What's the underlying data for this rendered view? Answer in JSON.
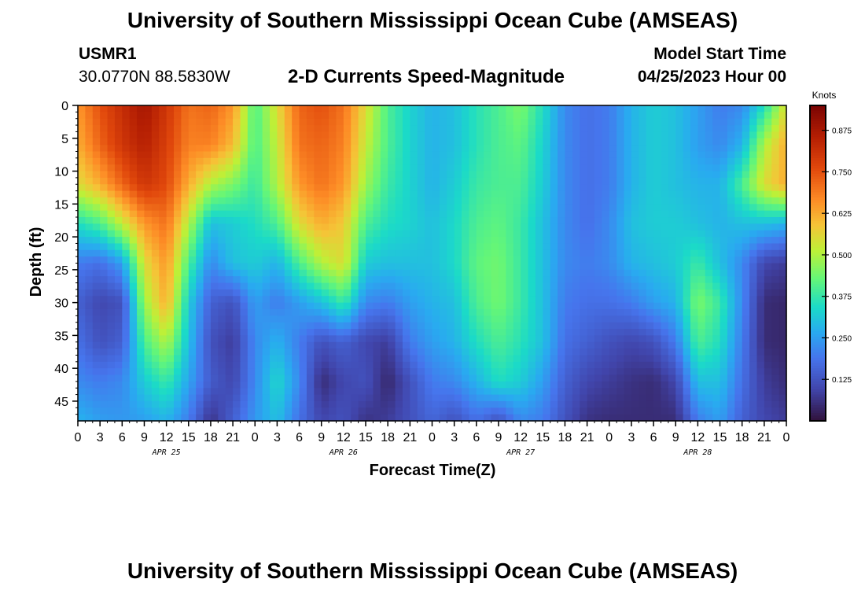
{
  "page": {
    "title": "University of Southern Mississippi Ocean Cube (AMSEAS)",
    "title_repeat": "University of Southern Mississippi Ocean Cube (AMSEAS)",
    "station_id": "USMR1",
    "station_coords": "30.0770N  88.5830W",
    "subtitle": "2-D Currents Speed-Magnitude",
    "model_start_label": "Model Start Time",
    "model_start_value": "04/25/2023 Hour 00"
  },
  "chart_data": {
    "type": "heatmap",
    "title": "2-D Currents Speed-Magnitude",
    "xlabel": "Forecast Time(Z)",
    "ylabel": "Depth (ft)",
    "colorbar_label": "Knots",
    "colorbar_ticks": [
      "0.125",
      "0.250",
      "0.375",
      "0.500",
      "0.625",
      "0.750",
      "0.875"
    ],
    "colorbar_range": [
      0,
      0.95
    ],
    "x_tick_labels": [
      "0",
      "3",
      "6",
      "9",
      "12",
      "15",
      "18",
      "21",
      "0",
      "3",
      "6",
      "9",
      "12",
      "15",
      "18",
      "21",
      "0",
      "3",
      "6",
      "9",
      "12",
      "15",
      "18",
      "21",
      "0",
      "3",
      "6",
      "9",
      "12",
      "15",
      "18",
      "21",
      "0"
    ],
    "day_labels": [
      "APR 25",
      "APR 26",
      "APR 27",
      "APR 28"
    ],
    "y_tick_labels": [
      "0",
      "5",
      "10",
      "15",
      "20",
      "25",
      "30",
      "35",
      "40",
      "45"
    ],
    "x_range_hours": [
      0,
      96
    ],
    "ylim": [
      0,
      48
    ],
    "y_reversed": true,
    "x_hours": [
      0,
      3,
      6,
      9,
      12,
      15,
      18,
      21,
      24,
      27,
      30,
      33,
      36,
      39,
      42,
      45,
      48,
      51,
      54,
      57,
      60,
      63,
      66,
      69,
      72,
      75,
      78,
      81,
      84,
      87,
      90,
      93,
      96
    ],
    "depths_ft": [
      0,
      6,
      12,
      18,
      24,
      30,
      36,
      42,
      48
    ],
    "values": [
      [
        0.65,
        0.75,
        0.82,
        0.88,
        0.8,
        0.7,
        0.72,
        0.65,
        0.4,
        0.55,
        0.72,
        0.75,
        0.7,
        0.55,
        0.4,
        0.33,
        0.28,
        0.3,
        0.36,
        0.4,
        0.45,
        0.35,
        0.22,
        0.18,
        0.2,
        0.28,
        0.32,
        0.3,
        0.25,
        0.2,
        0.22,
        0.35,
        0.55
      ],
      [
        0.62,
        0.72,
        0.8,
        0.85,
        0.78,
        0.68,
        0.68,
        0.6,
        0.4,
        0.52,
        0.7,
        0.72,
        0.68,
        0.52,
        0.4,
        0.33,
        0.28,
        0.3,
        0.36,
        0.4,
        0.42,
        0.33,
        0.22,
        0.18,
        0.2,
        0.28,
        0.32,
        0.3,
        0.25,
        0.22,
        0.28,
        0.5,
        0.62
      ],
      [
        0.55,
        0.62,
        0.72,
        0.8,
        0.76,
        0.62,
        0.5,
        0.45,
        0.38,
        0.5,
        0.65,
        0.7,
        0.65,
        0.48,
        0.38,
        0.33,
        0.28,
        0.32,
        0.38,
        0.4,
        0.4,
        0.32,
        0.22,
        0.18,
        0.2,
        0.28,
        0.32,
        0.3,
        0.28,
        0.28,
        0.4,
        0.55,
        0.62
      ],
      [
        0.35,
        0.4,
        0.52,
        0.65,
        0.7,
        0.5,
        0.3,
        0.32,
        0.35,
        0.4,
        0.55,
        0.62,
        0.58,
        0.4,
        0.35,
        0.33,
        0.3,
        0.34,
        0.4,
        0.42,
        0.38,
        0.3,
        0.22,
        0.18,
        0.22,
        0.3,
        0.32,
        0.32,
        0.3,
        0.28,
        0.3,
        0.3,
        0.28
      ],
      [
        0.2,
        0.18,
        0.25,
        0.55,
        0.65,
        0.4,
        0.22,
        0.3,
        0.32,
        0.28,
        0.4,
        0.5,
        0.55,
        0.32,
        0.3,
        0.3,
        0.3,
        0.34,
        0.42,
        0.44,
        0.38,
        0.3,
        0.22,
        0.2,
        0.22,
        0.28,
        0.3,
        0.32,
        0.38,
        0.3,
        0.22,
        0.1,
        0.08
      ],
      [
        0.15,
        0.1,
        0.12,
        0.48,
        0.62,
        0.32,
        0.15,
        0.12,
        0.25,
        0.2,
        0.25,
        0.3,
        0.38,
        0.22,
        0.2,
        0.25,
        0.28,
        0.3,
        0.4,
        0.44,
        0.38,
        0.3,
        0.2,
        0.18,
        0.18,
        0.2,
        0.25,
        0.28,
        0.45,
        0.38,
        0.22,
        0.05,
        0.04
      ],
      [
        0.18,
        0.12,
        0.15,
        0.4,
        0.5,
        0.3,
        0.12,
        0.08,
        0.22,
        0.28,
        0.2,
        0.12,
        0.15,
        0.1,
        0.08,
        0.2,
        0.25,
        0.28,
        0.35,
        0.4,
        0.36,
        0.3,
        0.18,
        0.15,
        0.12,
        0.1,
        0.12,
        0.2,
        0.4,
        0.35,
        0.2,
        0.05,
        0.04
      ],
      [
        0.22,
        0.2,
        0.22,
        0.32,
        0.38,
        0.26,
        0.14,
        0.1,
        0.22,
        0.34,
        0.22,
        0.05,
        0.1,
        0.12,
        0.04,
        0.12,
        0.2,
        0.22,
        0.28,
        0.35,
        0.32,
        0.25,
        0.15,
        0.1,
        0.08,
        0.06,
        0.05,
        0.1,
        0.3,
        0.3,
        0.18,
        0.08,
        0.05
      ],
      [
        0.28,
        0.25,
        0.24,
        0.25,
        0.28,
        0.2,
        0.06,
        0.15,
        0.24,
        0.3,
        0.18,
        0.1,
        0.12,
        0.06,
        0.08,
        0.12,
        0.16,
        0.12,
        0.18,
        0.12,
        0.22,
        0.2,
        0.12,
        0.06,
        0.05,
        0.05,
        0.05,
        0.05,
        0.2,
        0.25,
        0.15,
        0.1,
        0.08
      ]
    ]
  }
}
